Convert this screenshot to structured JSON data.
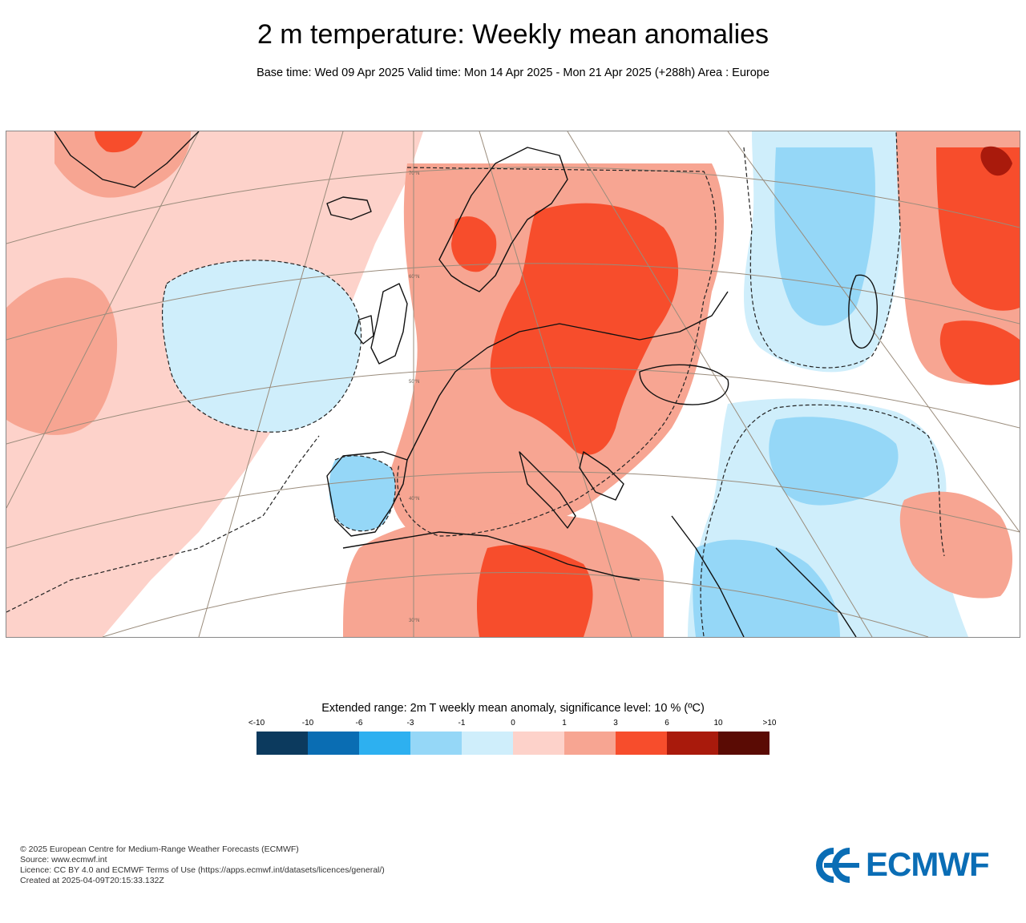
{
  "header": {
    "title": "2 m temperature: Weekly mean anomalies",
    "subtitle": "Base time: Wed 09 Apr 2025 Valid time: Mon 14 Apr 2025 - Mon 21 Apr 2025 (+288h) Area : Europe"
  },
  "map": {
    "area": "Europe",
    "latitude_labels": [
      "70°N",
      "60°N",
      "50°N",
      "40°N",
      "30°N"
    ],
    "colors": {
      "land_outline": "#111111",
      "graticule": "#9a8c7c",
      "significance_contour": "#222222"
    },
    "anomaly_regions": [
      {
        "region": "Greenland south coast",
        "category": "3 to 6"
      },
      {
        "region": "North Atlantic west",
        "category": "1 to 3"
      },
      {
        "region": "North Atlantic central",
        "category": "-1 to 0"
      },
      {
        "region": "Iberian Peninsula",
        "category": "-3 to -1"
      },
      {
        "region": "Scandinavia / Finland",
        "category": "3 to 6"
      },
      {
        "region": "Central and Eastern Europe",
        "category": "3 to 6"
      },
      {
        "region": "Mediterranean / North Africa",
        "category": "1 to 3"
      },
      {
        "region": "Algeria / Libya interior",
        "category": "3 to 6"
      },
      {
        "region": "Western Russia",
        "category": "-3 to -1"
      },
      {
        "region": "Turkey / Middle East",
        "category": "-3 to -1"
      },
      {
        "region": "Arabian Peninsula north",
        "category": "-3 to -1"
      },
      {
        "region": "Urals / Western Siberia",
        "category": "3 to 6"
      },
      {
        "region": "Kazakhstan west",
        "category": "3 to 6"
      }
    ]
  },
  "legend": {
    "title": "Extended range: 2m T weekly mean anomaly, significance level: 10 % (ºC)",
    "tick_labels": [
      "<-10",
      "-10",
      "-6",
      "-3",
      "-1",
      "0",
      "1",
      "3",
      "6",
      "10",
      ">10"
    ],
    "colors": [
      "#0c3a5e",
      "#0a6db3",
      "#2db0f0",
      "#95d7f7",
      "#cfeefb",
      "#fdd2ca",
      "#f7a592",
      "#f74d2c",
      "#a91a0c",
      "#5a0b04"
    ]
  },
  "footer": {
    "copyright": "© 2025 European Centre for Medium-Range Weather Forecasts (ECMWF)",
    "source": "Source: www.ecmwf.int",
    "licence": "Licence: CC BY 4.0 and ECMWF Terms of Use (https://apps.ecmwf.int/datasets/licences/general/)",
    "created": "Created at 2025-04-09T20:15:33.132Z",
    "logo_text": "ECMWF",
    "logo_color": "#0a6db5"
  }
}
